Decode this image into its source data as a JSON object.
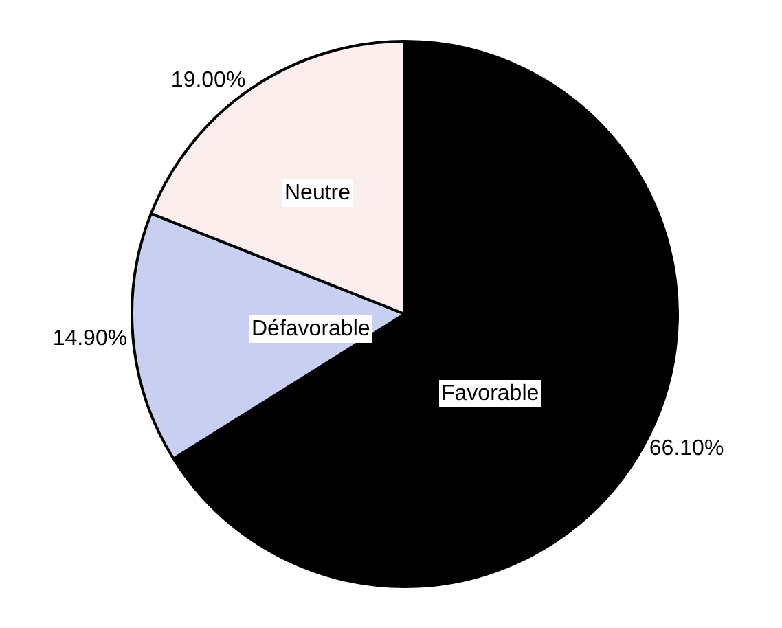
{
  "chart_data": {
    "type": "pie",
    "categories": [
      "Favorable",
      "Défavorable",
      "Neutre"
    ],
    "values": [
      66.1,
      14.9,
      19.0
    ],
    "colors": [
      "#000000",
      "#c9cff0",
      "#fdeeee"
    ],
    "value_labels": [
      "66.10%",
      "14.90%",
      "19.00%"
    ]
  }
}
